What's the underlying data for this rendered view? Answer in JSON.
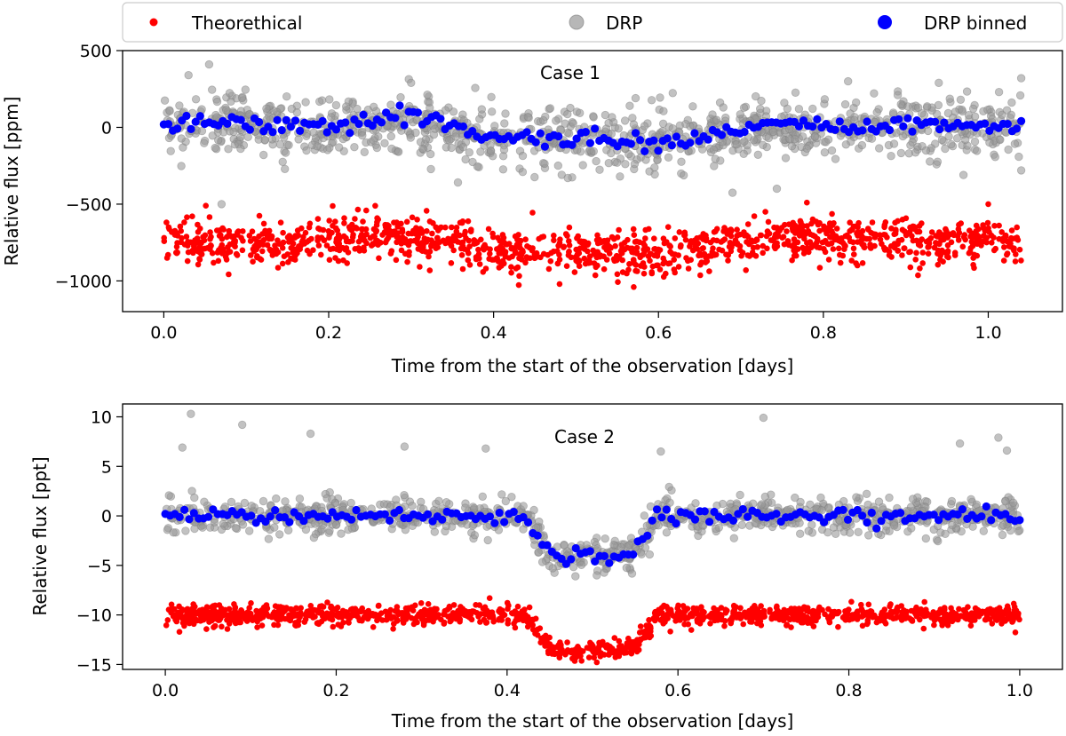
{
  "legend": {
    "entries": [
      {
        "label": "Theorethical",
        "color": "#ff0000",
        "marker": "small-dot"
      },
      {
        "label": "DRP",
        "color": "#999999",
        "marker": "circle"
      },
      {
        "label": "DRP binned",
        "color": "#0000ff",
        "marker": "circle"
      }
    ],
    "placement": "top, above both panels"
  },
  "chart_data": [
    {
      "type": "scatter",
      "panel_label": "Case 1",
      "xlabel": "Time from the start of the observation [days]",
      "ylabel": "Relative flux [ppm]",
      "xlim": [
        -0.05,
        1.09
      ],
      "ylim": [
        -1200,
        500
      ],
      "xticks": [
        0.0,
        0.2,
        0.4,
        0.6,
        0.8,
        1.0
      ],
      "xtick_labels": [
        "0.0",
        "0.2",
        "0.4",
        "0.6",
        "0.8",
        "1.0"
      ],
      "yticks": [
        500,
        0,
        -500,
        -1000
      ],
      "ytick_labels": [
        "500",
        "0",
        "−500",
        "−1000"
      ],
      "series": [
        {
          "name": "DRP",
          "color": "#999999",
          "x_range": [
            0.0,
            1.04
          ],
          "n_points": 1100,
          "baseline": 0,
          "scatter": 95,
          "description_trend_days": [
            0.0,
            0.35,
            0.4,
            0.5,
            0.6,
            0.7,
            1.04
          ],
          "description_trend_values": [
            10,
            20,
            -70,
            -70,
            -90,
            -20,
            10
          ]
        },
        {
          "name": "DRP binned",
          "color": "#0000ff",
          "x_range": [
            0.0,
            1.04
          ],
          "n_points": 190,
          "trend_x": [
            0.0,
            0.05,
            0.1,
            0.15,
            0.2,
            0.25,
            0.3,
            0.35,
            0.4,
            0.45,
            0.5,
            0.55,
            0.6,
            0.65,
            0.7,
            0.75,
            0.8,
            0.85,
            0.9,
            0.95,
            1.0,
            1.04
          ],
          "trend_y": [
            10,
            40,
            20,
            10,
            0,
            40,
            70,
            30,
            -60,
            -80,
            -70,
            -70,
            -100,
            -80,
            -20,
            40,
            10,
            -10,
            30,
            20,
            10,
            10
          ]
        },
        {
          "name": "Theorethical",
          "color": "#ff0000",
          "x_range": [
            0.0,
            1.04
          ],
          "n_points": 1250,
          "scatter": 70,
          "trend_x": [
            0.0,
            0.1,
            0.2,
            0.25,
            0.3,
            0.35,
            0.4,
            0.45,
            0.5,
            0.55,
            0.6,
            0.65,
            0.7,
            0.75,
            0.8,
            0.9,
            1.0,
            1.04
          ],
          "trend_y": [
            -740,
            -760,
            -740,
            -700,
            -720,
            -740,
            -790,
            -820,
            -800,
            -820,
            -830,
            -800,
            -740,
            -700,
            -730,
            -740,
            -730,
            -740
          ]
        }
      ],
      "special_points": [
        {
          "series": "DRP",
          "x": 0.055,
          "y": 410
        },
        {
          "series": "DRP",
          "x": 0.03,
          "y": 340
        },
        {
          "series": "DRP",
          "x": 0.3,
          "y": 290
        },
        {
          "series": "DRP",
          "x": 0.83,
          "y": 300
        },
        {
          "series": "DRP",
          "x": 0.94,
          "y": 290
        },
        {
          "series": "DRP",
          "x": 1.04,
          "y": 320
        },
        {
          "series": "DRP",
          "x": 0.49,
          "y": -330
        },
        {
          "series": "DRP",
          "x": 0.97,
          "y": -310
        },
        {
          "series": "DRP",
          "x": 1.04,
          "y": -280
        },
        {
          "series": "DRP",
          "x": 0.07,
          "y": -500
        },
        {
          "series": "Theorethical",
          "x": 0.57,
          "y": -1040
        },
        {
          "series": "Theorethical",
          "x": 0.48,
          "y": -1020
        },
        {
          "series": "Theorethical",
          "x": 0.78,
          "y": -490
        },
        {
          "series": "Theorethical",
          "x": 1.0,
          "y": -500
        }
      ]
    },
    {
      "type": "scatter",
      "panel_label": "Case 2",
      "xlabel": "Time from the start of the observation [days]",
      "ylabel": "Relative flux [ppt]",
      "xlim": [
        -0.05,
        1.05
      ],
      "ylim": [
        -15.5,
        11.3
      ],
      "xticks": [
        0.0,
        0.2,
        0.4,
        0.6,
        0.8,
        1.0
      ],
      "xtick_labels": [
        "0.0",
        "0.2",
        "0.4",
        "0.6",
        "0.8",
        "1.0"
      ],
      "yticks": [
        10,
        5,
        0,
        -5,
        -10,
        -15
      ],
      "ytick_labels": [
        "10",
        "5",
        "0",
        "−5",
        "−10",
        "−15"
      ],
      "series": [
        {
          "name": "DRP",
          "color": "#999999",
          "x_range": [
            0.0,
            1.0
          ],
          "n_points": 1000,
          "scatter": 0.9,
          "transit": {
            "ingress_start": 0.42,
            "full_start": 0.45,
            "full_end": 0.55,
            "egress_end": 0.575,
            "depth": 3.7
          }
        },
        {
          "name": "DRP binned",
          "color": "#0000ff",
          "x_range": [
            0.0,
            1.0
          ],
          "n_points": 180,
          "transit": {
            "ingress_start": 0.42,
            "full_start": 0.45,
            "full_end": 0.55,
            "egress_end": 0.575,
            "depth": 3.7
          }
        },
        {
          "name": "Theorethical",
          "color": "#ff0000",
          "x_range": [
            0.0,
            1.0
          ],
          "n_points": 1300,
          "baseline": -10,
          "scatter": 0.5,
          "transit": {
            "ingress_start": 0.42,
            "full_start": 0.45,
            "full_end": 0.55,
            "egress_end": 0.575,
            "depth": 3.3
          }
        }
      ],
      "special_points": [
        {
          "series": "DRP",
          "x": 0.03,
          "y": 10.3
        },
        {
          "series": "DRP",
          "x": 0.7,
          "y": 9.9
        },
        {
          "series": "DRP",
          "x": 0.09,
          "y": 9.2
        },
        {
          "series": "DRP",
          "x": 0.17,
          "y": 8.3
        },
        {
          "series": "DRP",
          "x": 0.975,
          "y": 7.9
        },
        {
          "series": "DRP",
          "x": 0.28,
          "y": 7.0
        },
        {
          "series": "DRP",
          "x": 0.93,
          "y": 7.3
        },
        {
          "series": "DRP",
          "x": 0.02,
          "y": 6.9
        },
        {
          "series": "DRP",
          "x": 0.985,
          "y": 6.6
        },
        {
          "series": "DRP",
          "x": 0.58,
          "y": 6.5
        },
        {
          "series": "DRP",
          "x": 0.375,
          "y": 6.8
        },
        {
          "series": "DRP",
          "x": 0.48,
          "y": -6.1
        },
        {
          "series": "DRP",
          "x": 0.505,
          "y": -6.0
        }
      ]
    }
  ]
}
